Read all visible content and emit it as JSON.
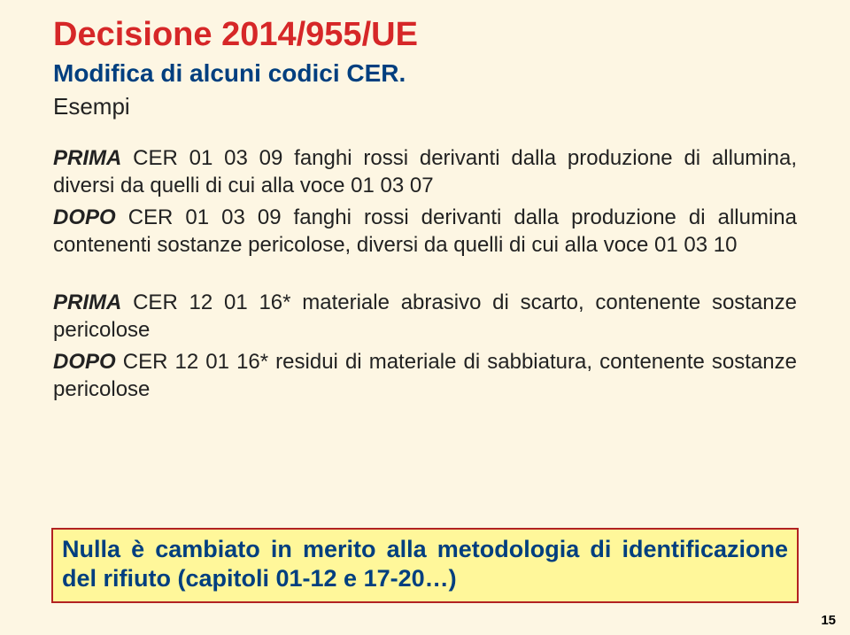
{
  "title": "Decisione 2014/955/UE",
  "subtitle": "Modifica di alcuni codici CER.",
  "esempi_label": "Esempi",
  "block1": {
    "prima_prefix": "PRIMA",
    "prima_rest": " CER 01 03 09 fanghi rossi derivanti dalla produzione di allumina, diversi da quelli di cui alla voce 01 03 07",
    "dopo_prefix": "DOPO",
    "dopo_rest": " CER 01 03 09 fanghi rossi derivanti dalla produzione di allumina contenenti sostanze pericolose, diversi da quelli di cui alla voce 01 03 10"
  },
  "block2": {
    "prima_prefix": "PRIMA",
    "prima_rest": " CER 12 01 16*  materiale abrasivo di scarto, contenente sostanze pericolose",
    "dopo_prefix": "DOPO",
    "dopo_rest": " CER 12 01 16*  residui di materiale di sabbiatura, contenente sostanze pericolose"
  },
  "highlight": "Nulla è cambiato in merito alla metodologia di identificazione del rifiuto (capitoli 01-12 e 17-20…)",
  "page_number": "15",
  "colors": {
    "background": "#fdf6e3",
    "title": "#d62728",
    "heading": "#003f7f",
    "body": "#222222",
    "highlight_bg": "#fff79a",
    "highlight_border": "#b22222"
  }
}
